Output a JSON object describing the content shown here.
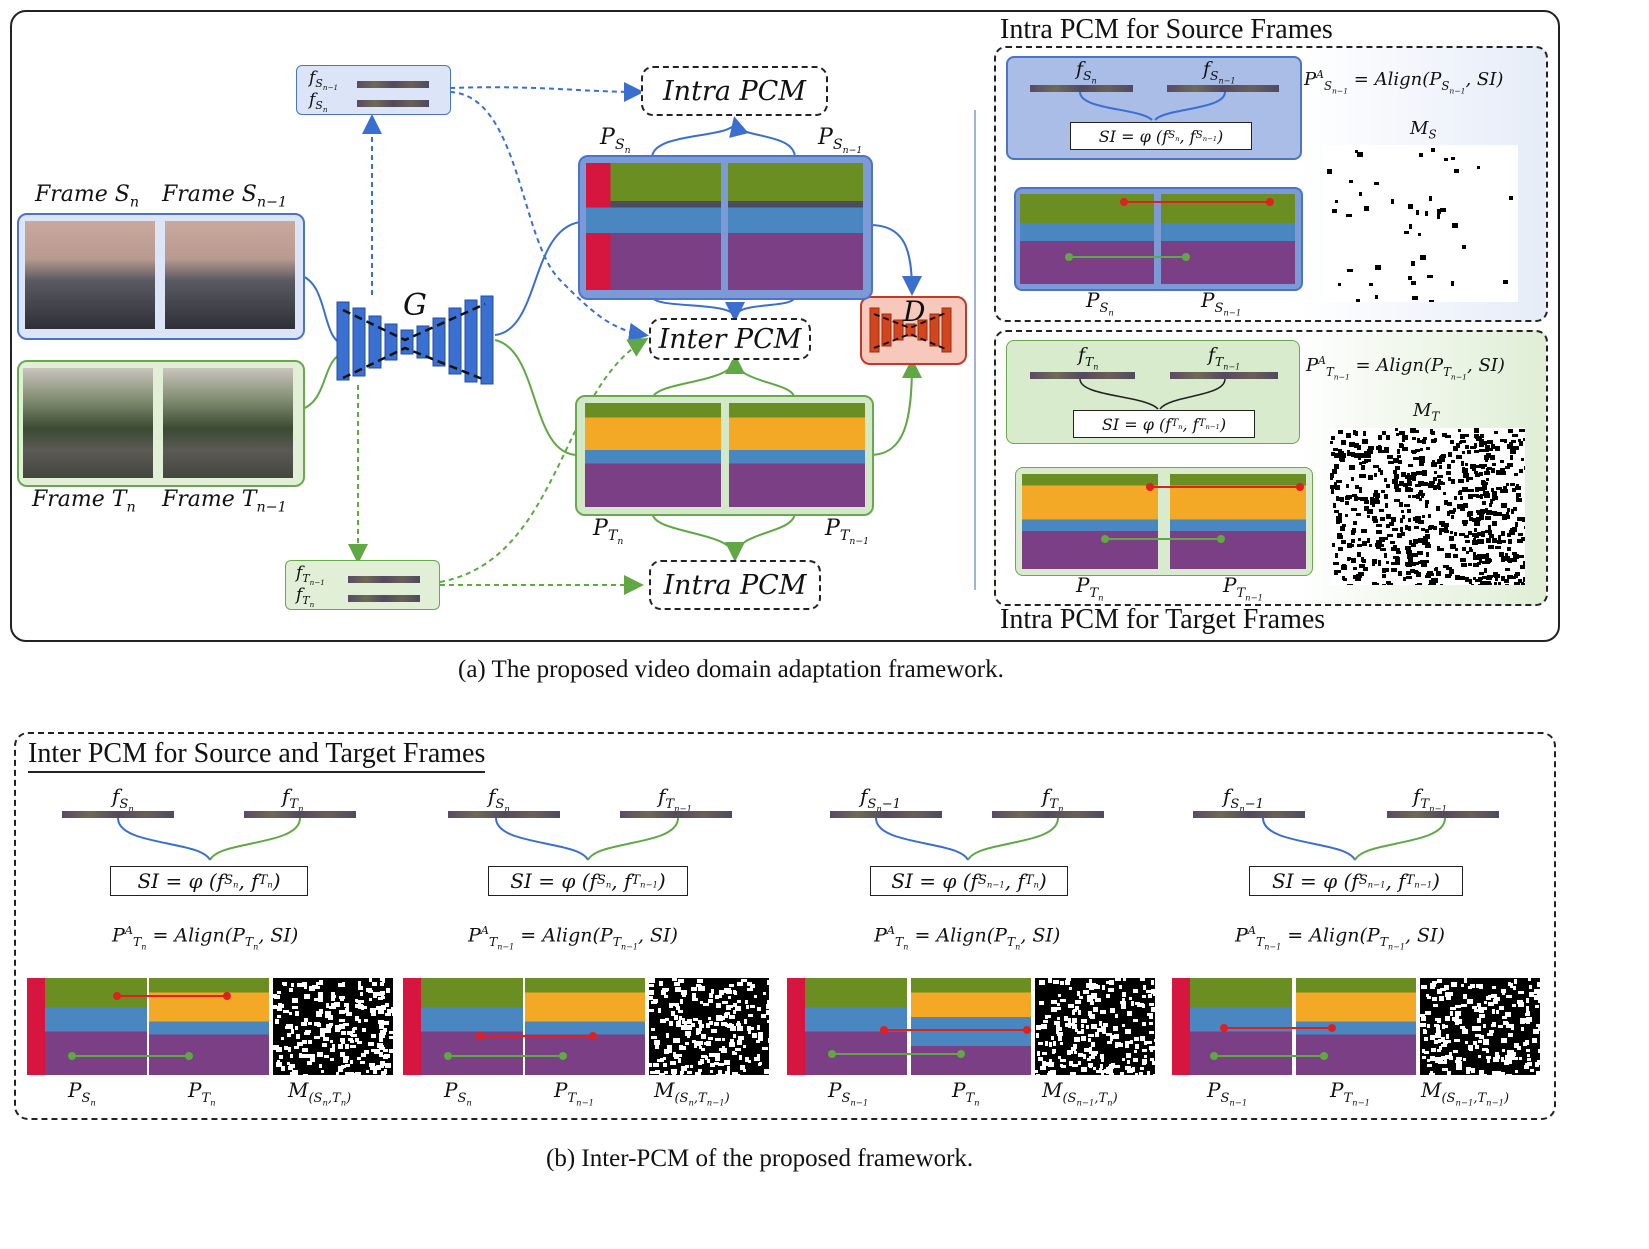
{
  "panel_a": {
    "frames": {
      "source_n": "Frame S_n",
      "source_n1": "Frame S_{n-1}",
      "target_n": "Frame T_n",
      "target_n1": "Frame T_{n-1}"
    },
    "generator": "G",
    "discriminator": "D",
    "features_source": [
      "f_{S_{n-1}}",
      "f_{S_n}"
    ],
    "features_target": [
      "f_{T_{n-1}}",
      "f_{T_n}"
    ],
    "intra_pcm_top": "Intra PCM",
    "inter_pcm": "Inter PCM",
    "intra_pcm_bottom": "Intra PCM",
    "pred_labels": {
      "ps_n": "P_{S_n}",
      "ps_n1": "P_{S_{n-1}}",
      "pt_n": "P_{T_n}",
      "pt_n1": "P_{T_{n-1}}"
    },
    "source_panel": {
      "title": "Intra PCM for Source Frames",
      "f_left": "f_{S_n}",
      "f_right": "f_{S_{n-1}}",
      "si": "SI = φ (f_{S_n}, f_{S_{n-1}})",
      "align": "P^A_{S_{n-1}} = Align(P_{S_{n-1}}, SI)",
      "mask_label": "M_S",
      "p_left": "P_{S_n}",
      "p_right": "P_{S_{n-1}}"
    },
    "target_panel": {
      "title": "Intra PCM for Target Frames",
      "f_left": "f_{T_n}",
      "f_right": "f_{T_{n-1}}",
      "si": "SI = φ (f_{T_n}, f_{T_{n-1}})",
      "align": "P^A_{T_{n-1}} = Align(P_{T_{n-1}}, SI)",
      "mask_label": "M_T",
      "p_left": "P_{T_n}",
      "p_right": "P_{T_{n-1}}"
    },
    "caption": "(a)  The proposed video domain adaptation framework."
  },
  "panel_b": {
    "title": "Inter PCM for Source and Target Frames",
    "groups": [
      {
        "f_left": "f_{S_n}",
        "f_right": "f_{T_n}",
        "si": "SI = φ (f_{S_n}, f_{T_n})",
        "align": "P^A_{T_n} = Align(P_{T_n}, SI)",
        "p_left": "P_{S_n}",
        "p_right": "P_{T_n}",
        "mask": "M_{(S_n,T_n)}"
      },
      {
        "f_left": "f_{S_n}",
        "f_right": "f_{T_{n-1}}",
        "si": "SI = φ (f_{S_n}, f_{T_{n-1}})",
        "align": "P^A_{T_{n-1}} = Align(P_{T_{n-1}}, SI)",
        "p_left": "P_{S_n}",
        "p_right": "P_{T_{n-1}}",
        "mask": "M_{(S_n,T_{n-1})}"
      },
      {
        "f_left": "f_{S_n-1}",
        "f_right": "f_{T_n}",
        "si": "SI = φ (f_{S_{n-1}}, f_{T_n})",
        "align": "P^A_{T_n} = Align(P_{T_n}, SI)",
        "p_left": "P_{S_{n-1}}",
        "p_right": "P_{T_n}",
        "mask": "M_{(S_{n-1},T_n)}"
      },
      {
        "f_left": "f_{S_n-1}",
        "f_right": "f_{T_{n-1}}",
        "si": "SI = φ (f_{S_{n-1}}, f_{T_{n-1}})",
        "align": "P^A_{T_{n-1}} = Align(P_{T_{n-1}}, SI)",
        "p_left": "P_{S_{n-1}}",
        "p_right": "P_{T_{n-1}}",
        "mask": "M_{(S_{n-1},T_{n-1})}"
      }
    ],
    "caption": "(b)  Inter-PCM of the proposed framework."
  },
  "colors": {
    "source_blue": "#4a73c9",
    "target_green": "#6aa84f",
    "align_red": "#e02020",
    "seg_purple": "#7b3f86",
    "seg_orange": "#f3a826",
    "seg_olive": "#6b8e23",
    "seg_blue": "#4a86c0",
    "seg_red": "#d6163e",
    "seg_magenta": "#e23ce6"
  }
}
